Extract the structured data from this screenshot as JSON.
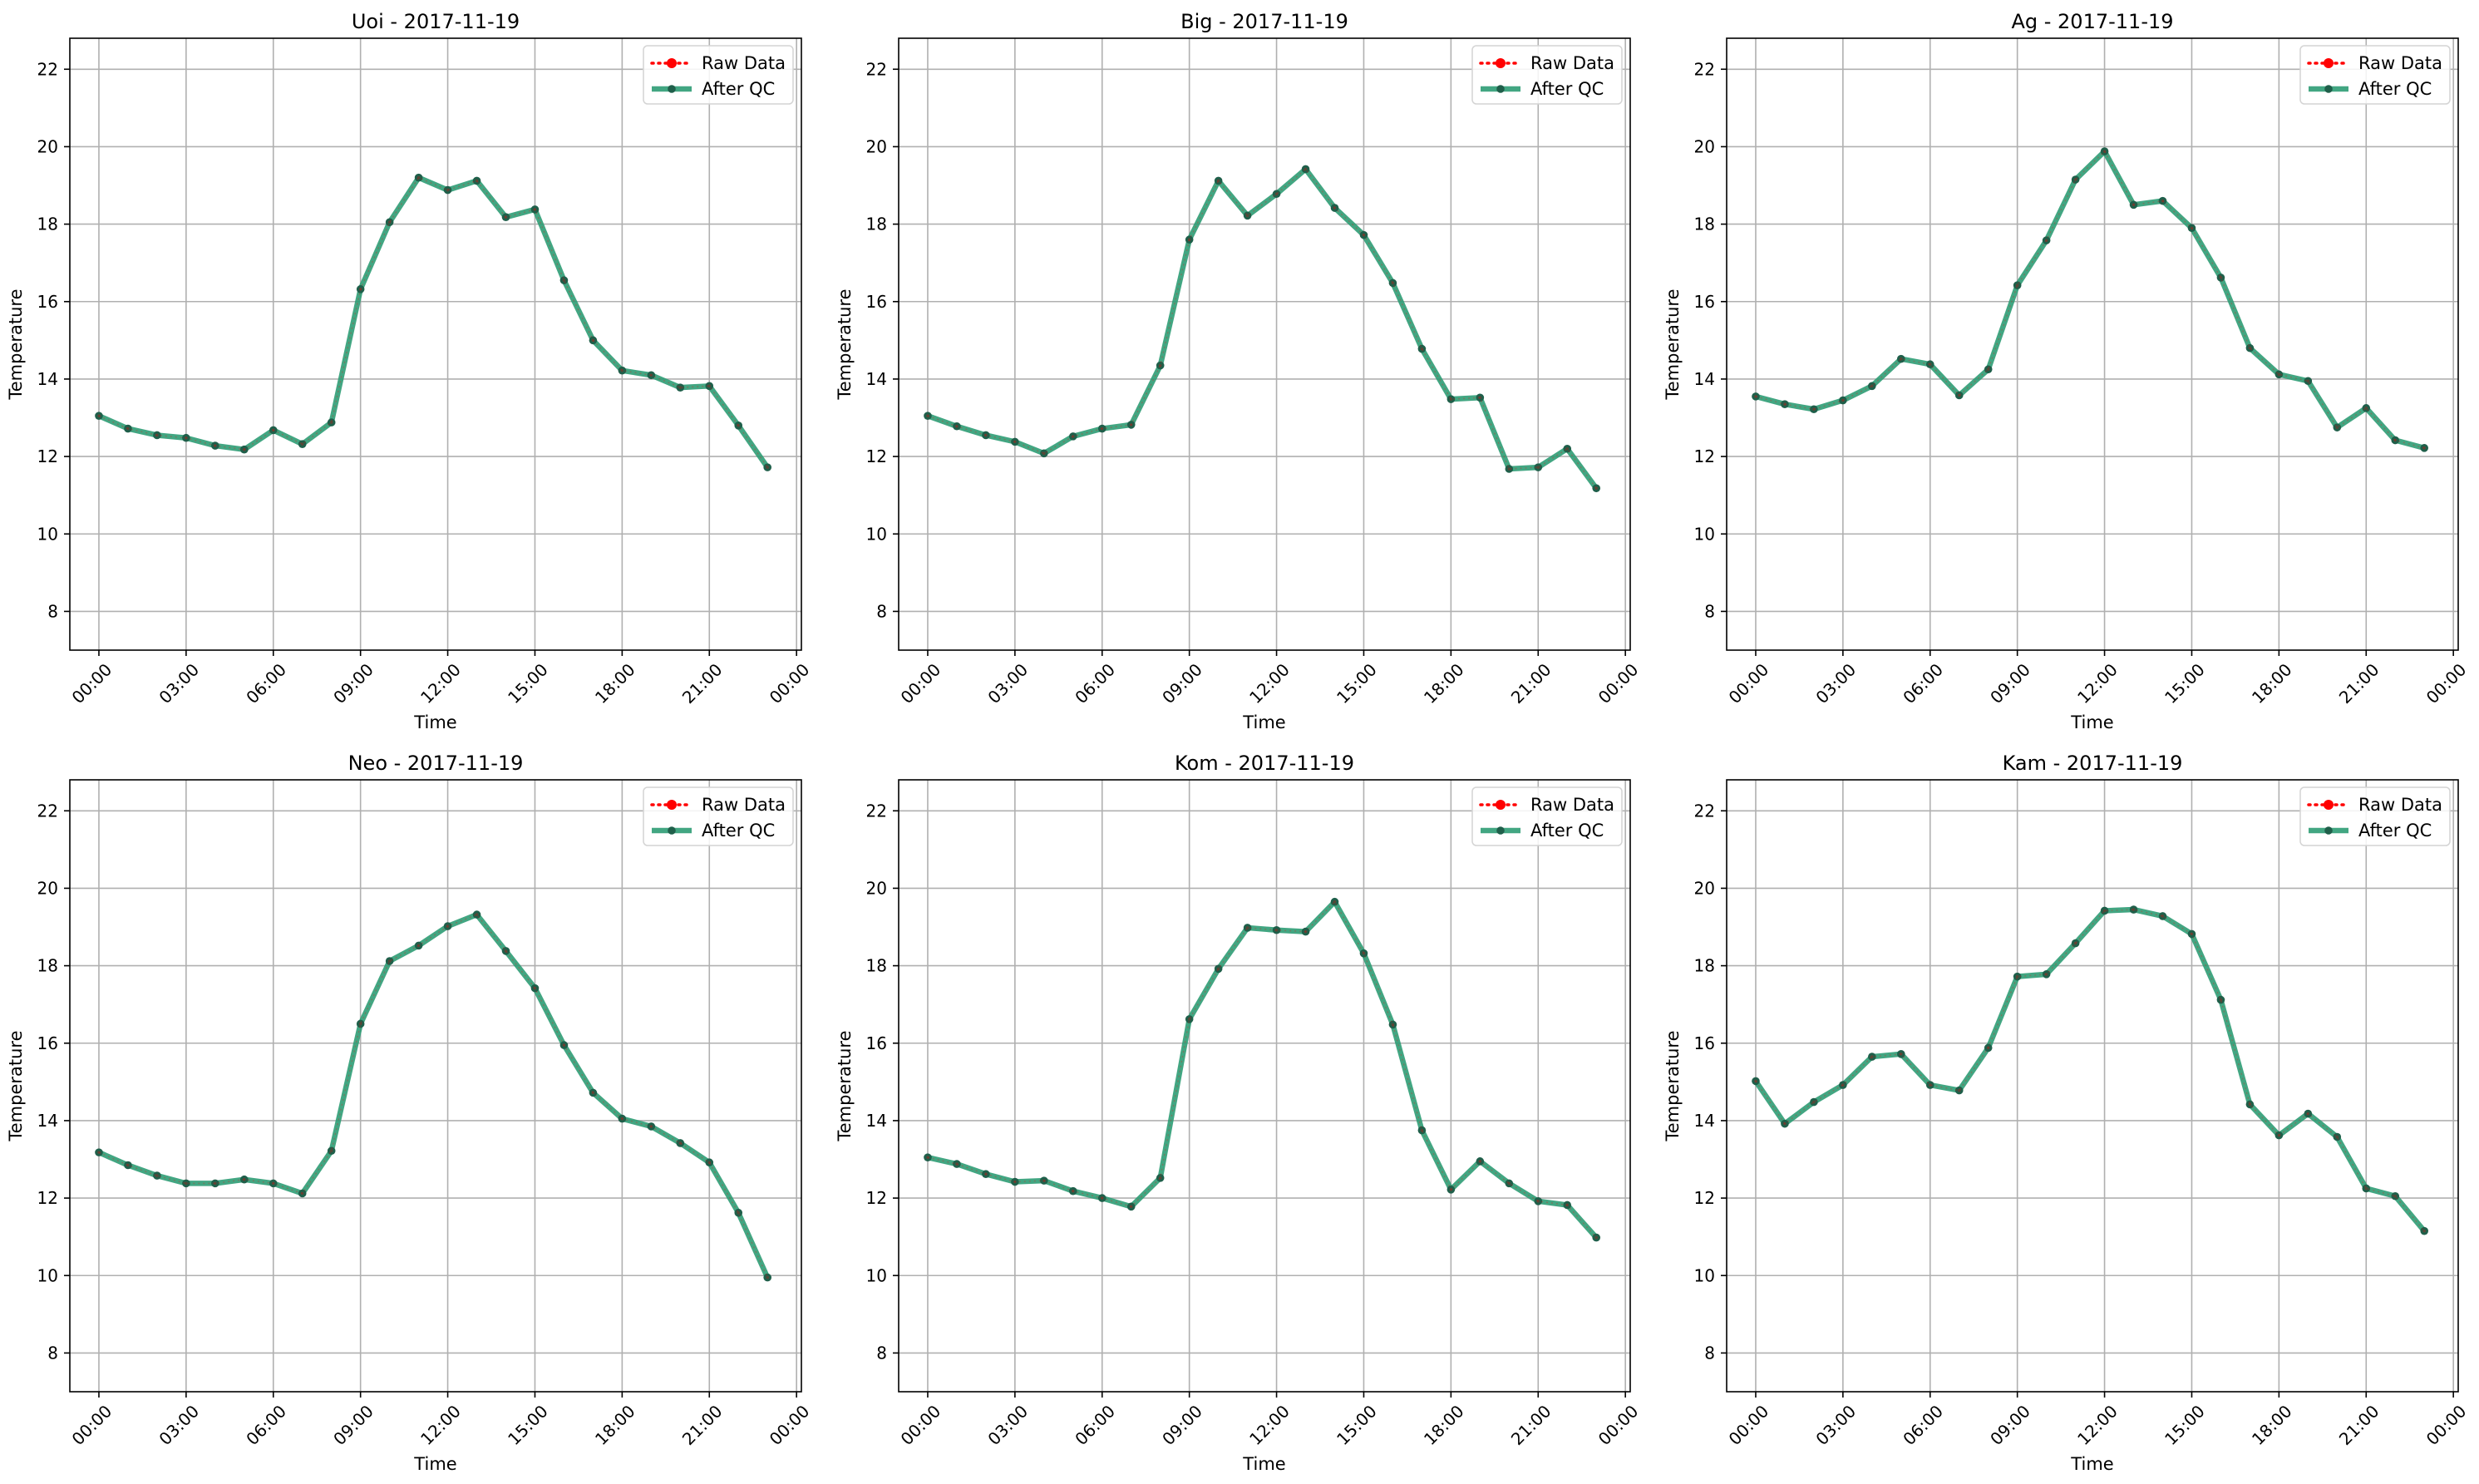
{
  "chart_data": [
    {
      "type": "line",
      "title": "Uoi - 2017-11-19",
      "xlabel": "Time",
      "ylabel": "Temperature",
      "xlim": [
        "-01:00",
        "24:10"
      ],
      "ylim": [
        7,
        22.8
      ],
      "xticks": [
        "00:00",
        "03:00",
        "06:00",
        "09:00",
        "12:00",
        "15:00",
        "18:00",
        "21:00",
        "00:00"
      ],
      "yticks": [
        8,
        10,
        12,
        14,
        16,
        18,
        20,
        22
      ],
      "grid": true,
      "legend": "top-right",
      "x": [
        "00:00",
        "01:00",
        "02:00",
        "03:00",
        "04:00",
        "05:00",
        "06:00",
        "07:00",
        "08:00",
        "09:00",
        "10:00",
        "11:00",
        "12:00",
        "13:00",
        "14:00",
        "15:00",
        "16:00",
        "17:00",
        "18:00",
        "19:00",
        "20:00",
        "21:00",
        "22:00",
        "23:00"
      ],
      "series": [
        {
          "name": "Raw Data",
          "values": [
            13.05,
            12.72,
            12.55,
            12.48,
            12.28,
            12.18,
            12.68,
            12.32,
            12.88,
            16.32,
            18.05,
            19.2,
            18.88,
            19.12,
            18.18,
            18.38,
            16.55,
            15.0,
            14.22,
            14.1,
            13.78,
            13.82,
            12.8,
            11.72
          ]
        },
        {
          "name": "After QC",
          "values": [
            13.05,
            12.72,
            12.55,
            12.48,
            12.28,
            12.18,
            12.68,
            12.32,
            12.88,
            16.32,
            18.05,
            19.2,
            18.88,
            19.12,
            18.18,
            18.38,
            16.55,
            15.0,
            14.22,
            14.1,
            13.78,
            13.82,
            12.8,
            11.72
          ]
        }
      ]
    },
    {
      "type": "line",
      "title": "Big - 2017-11-19",
      "xlabel": "Time",
      "ylabel": "Temperature",
      "xlim": [
        "-01:00",
        "24:10"
      ],
      "ylim": [
        7,
        22.8
      ],
      "xticks": [
        "00:00",
        "03:00",
        "06:00",
        "09:00",
        "12:00",
        "15:00",
        "18:00",
        "21:00",
        "00:00"
      ],
      "yticks": [
        8,
        10,
        12,
        14,
        16,
        18,
        20,
        22
      ],
      "grid": true,
      "legend": "top-right",
      "x": [
        "00:00",
        "01:00",
        "02:00",
        "03:00",
        "04:00",
        "05:00",
        "06:00",
        "07:00",
        "08:00",
        "09:00",
        "10:00",
        "11:00",
        "12:00",
        "13:00",
        "14:00",
        "15:00",
        "16:00",
        "17:00",
        "18:00",
        "19:00",
        "20:00",
        "21:00",
        "22:00",
        "23:00"
      ],
      "series": [
        {
          "name": "Raw Data",
          "values": [
            13.05,
            12.78,
            12.55,
            12.38,
            12.08,
            12.52,
            12.72,
            12.82,
            14.35,
            17.6,
            19.12,
            18.22,
            18.78,
            19.42,
            18.42,
            17.72,
            16.48,
            14.78,
            13.48,
            13.52,
            11.68,
            11.72,
            12.2,
            11.18
          ]
        },
        {
          "name": "After QC",
          "values": [
            13.05,
            12.78,
            12.55,
            12.38,
            12.08,
            12.52,
            12.72,
            12.82,
            14.35,
            17.6,
            19.12,
            18.22,
            18.78,
            19.42,
            18.42,
            17.72,
            16.48,
            14.78,
            13.48,
            13.52,
            11.68,
            11.72,
            12.2,
            11.18
          ]
        }
      ]
    },
    {
      "type": "line",
      "title": "Ag - 2017-11-19",
      "xlabel": "Time",
      "ylabel": "Temperature",
      "xlim": [
        "-01:00",
        "24:10"
      ],
      "ylim": [
        7,
        22.8
      ],
      "xticks": [
        "00:00",
        "03:00",
        "06:00",
        "09:00",
        "12:00",
        "15:00",
        "18:00",
        "21:00",
        "00:00"
      ],
      "yticks": [
        8,
        10,
        12,
        14,
        16,
        18,
        20,
        22
      ],
      "grid": true,
      "legend": "top-right",
      "x": [
        "00:00",
        "01:00",
        "02:00",
        "03:00",
        "04:00",
        "05:00",
        "06:00",
        "07:00",
        "08:00",
        "09:00",
        "10:00",
        "11:00",
        "12:00",
        "13:00",
        "14:00",
        "15:00",
        "16:00",
        "17:00",
        "18:00",
        "19:00",
        "20:00",
        "21:00",
        "22:00",
        "23:00"
      ],
      "series": [
        {
          "name": "Raw Data",
          "values": [
            13.55,
            13.35,
            13.22,
            13.45,
            13.82,
            14.52,
            14.38,
            13.58,
            14.25,
            16.42,
            17.58,
            19.15,
            19.88,
            18.5,
            18.6,
            17.9,
            16.62,
            14.8,
            14.12,
            13.95,
            12.75,
            13.25,
            12.42,
            12.22
          ]
        },
        {
          "name": "After QC",
          "values": [
            13.55,
            13.35,
            13.22,
            13.45,
            13.82,
            14.52,
            14.38,
            13.58,
            14.25,
            16.42,
            17.58,
            19.15,
            19.88,
            18.5,
            18.6,
            17.9,
            16.62,
            14.8,
            14.12,
            13.95,
            12.75,
            13.25,
            12.42,
            12.22
          ]
        }
      ]
    },
    {
      "type": "line",
      "title": "Neo - 2017-11-19",
      "xlabel": "Time",
      "ylabel": "Temperature",
      "xlim": [
        "-01:00",
        "24:10"
      ],
      "ylim": [
        7,
        22.8
      ],
      "xticks": [
        "00:00",
        "03:00",
        "06:00",
        "09:00",
        "12:00",
        "15:00",
        "18:00",
        "21:00",
        "00:00"
      ],
      "yticks": [
        8,
        10,
        12,
        14,
        16,
        18,
        20,
        22
      ],
      "grid": true,
      "legend": "top-right",
      "x": [
        "00:00",
        "01:00",
        "02:00",
        "03:00",
        "04:00",
        "05:00",
        "06:00",
        "07:00",
        "08:00",
        "09:00",
        "10:00",
        "11:00",
        "12:00",
        "13:00",
        "14:00",
        "15:00",
        "16:00",
        "17:00",
        "18:00",
        "19:00",
        "20:00",
        "21:00",
        "22:00",
        "23:00"
      ],
      "series": [
        {
          "name": "Raw Data",
          "values": [
            13.18,
            12.85,
            12.58,
            12.38,
            12.38,
            12.48,
            12.38,
            12.12,
            13.22,
            16.5,
            18.12,
            18.52,
            19.02,
            19.32,
            18.38,
            17.42,
            15.95,
            14.72,
            14.05,
            13.85,
            13.42,
            12.92,
            11.62,
            9.95
          ]
        },
        {
          "name": "After QC",
          "values": [
            13.18,
            12.85,
            12.58,
            12.38,
            12.38,
            12.48,
            12.38,
            12.12,
            13.22,
            16.5,
            18.12,
            18.52,
            19.02,
            19.32,
            18.38,
            17.42,
            15.95,
            14.72,
            14.05,
            13.85,
            13.42,
            12.92,
            11.62,
            9.95
          ]
        }
      ]
    },
    {
      "type": "line",
      "title": "Kom - 2017-11-19",
      "xlabel": "Time",
      "ylabel": "Temperature",
      "xlim": [
        "-01:00",
        "24:10"
      ],
      "ylim": [
        7,
        22.8
      ],
      "xticks": [
        "00:00",
        "03:00",
        "06:00",
        "09:00",
        "12:00",
        "15:00",
        "18:00",
        "21:00",
        "00:00"
      ],
      "yticks": [
        8,
        10,
        12,
        14,
        16,
        18,
        20,
        22
      ],
      "grid": true,
      "legend": "top-right",
      "x": [
        "00:00",
        "01:00",
        "02:00",
        "03:00",
        "04:00",
        "05:00",
        "06:00",
        "07:00",
        "08:00",
        "09:00",
        "10:00",
        "11:00",
        "12:00",
        "13:00",
        "14:00",
        "15:00",
        "16:00",
        "17:00",
        "18:00",
        "19:00",
        "20:00",
        "21:00",
        "22:00",
        "23:00"
      ],
      "series": [
        {
          "name": "Raw Data",
          "values": [
            13.05,
            12.88,
            12.62,
            12.42,
            12.45,
            12.18,
            12.0,
            11.78,
            12.52,
            16.62,
            17.92,
            18.98,
            18.92,
            18.88,
            19.65,
            18.32,
            16.48,
            13.75,
            12.22,
            12.95,
            12.38,
            11.92,
            11.82,
            10.98
          ]
        },
        {
          "name": "After QC",
          "values": [
            13.05,
            12.88,
            12.62,
            12.42,
            12.45,
            12.18,
            12.0,
            11.78,
            12.52,
            16.62,
            17.92,
            18.98,
            18.92,
            18.88,
            19.65,
            18.32,
            16.48,
            13.75,
            12.22,
            12.95,
            12.38,
            11.92,
            11.82,
            10.98
          ]
        }
      ]
    },
    {
      "type": "line",
      "title": "Kam - 2017-11-19",
      "xlabel": "Time",
      "ylabel": "Temperature",
      "xlim": [
        "-01:00",
        "24:10"
      ],
      "ylim": [
        7,
        22.8
      ],
      "xticks": [
        "00:00",
        "03:00",
        "06:00",
        "09:00",
        "12:00",
        "15:00",
        "18:00",
        "21:00",
        "00:00"
      ],
      "yticks": [
        8,
        10,
        12,
        14,
        16,
        18,
        20,
        22
      ],
      "grid": true,
      "legend": "top-right",
      "x": [
        "00:00",
        "01:00",
        "02:00",
        "03:00",
        "04:00",
        "05:00",
        "06:00",
        "07:00",
        "08:00",
        "09:00",
        "10:00",
        "11:00",
        "12:00",
        "13:00",
        "14:00",
        "15:00",
        "16:00",
        "17:00",
        "18:00",
        "19:00",
        "20:00",
        "21:00",
        "22:00",
        "23:00"
      ],
      "series": [
        {
          "name": "Raw Data",
          "values": [
            15.02,
            13.92,
            14.48,
            14.92,
            15.65,
            15.72,
            14.92,
            14.78,
            15.88,
            17.72,
            17.78,
            18.58,
            19.42,
            19.45,
            19.28,
            18.82,
            17.12,
            14.42,
            13.62,
            14.18,
            13.58,
            12.25,
            12.05,
            11.15
          ]
        },
        {
          "name": "After QC",
          "values": [
            15.02,
            13.92,
            14.48,
            14.92,
            15.65,
            15.72,
            14.92,
            14.78,
            15.88,
            17.72,
            17.78,
            18.58,
            19.42,
            19.45,
            19.28,
            18.82,
            17.12,
            14.42,
            13.62,
            14.18,
            13.58,
            12.25,
            12.05,
            11.15
          ]
        }
      ]
    }
  ],
  "style": {
    "raw_color": "#ff0000",
    "qc_color": "#2e9c74",
    "marker_color": "#1f5f4a",
    "grid_color": "#b0b0b0",
    "axis_color": "#000000"
  }
}
